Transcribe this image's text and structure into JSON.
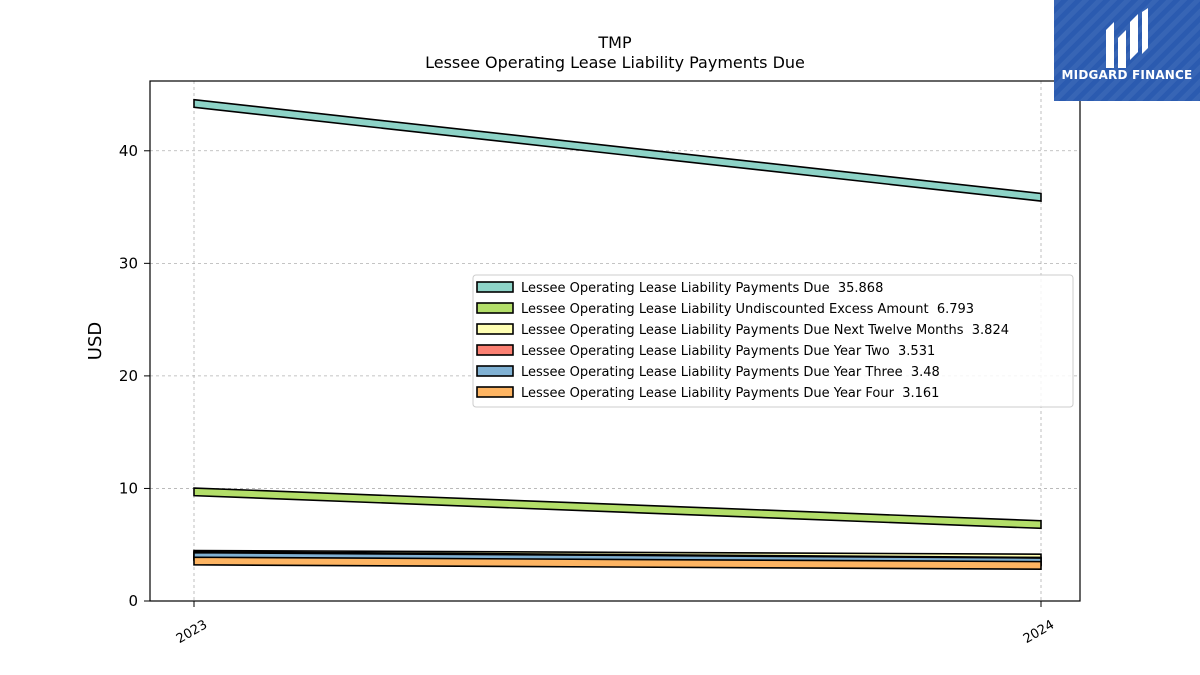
{
  "chart_data": {
    "type": "line",
    "title": "TMP",
    "subtitle": "Lessee Operating Lease Liability Payments Due",
    "xlabel": "",
    "ylabel": "USD",
    "categories": [
      "2023",
      "2024"
    ],
    "ylim": [
      0,
      46.2
    ],
    "yticks": [
      0,
      10,
      20,
      30,
      40
    ],
    "grid": true,
    "legend_position": "center-right",
    "series": [
      {
        "name": "Lessee Operating Lease Liability Payments Due",
        "legend_label": "Lessee Operating Lease Liability Payments Due  35.868",
        "values": [
          44.2,
          35.868
        ],
        "color": "#8dd3c7"
      },
      {
        "name": "Lessee Operating Lease Liability Undiscounted Excess Amount",
        "legend_label": "Lessee Operating Lease Liability Undiscounted Excess Amount  6.793",
        "values": [
          9.7,
          6.793
        ],
        "color": "#b3de69"
      },
      {
        "name": "Lessee Operating Lease Liability Payments Due Next Twelve Months",
        "legend_label": "Lessee Operating Lease Liability Payments Due Next Twelve Months  3.824",
        "values": [
          4.15,
          3.824
        ],
        "color": "#ffffb3"
      },
      {
        "name": "Lessee Operating Lease Liability Payments Due Year Two",
        "legend_label": "Lessee Operating Lease Liability Payments Due Year Two  3.531",
        "values": [
          4.05,
          3.531
        ],
        "color": "#fb8072"
      },
      {
        "name": "Lessee Operating Lease Liability Payments Due Year Three",
        "legend_label": "Lessee Operating Lease Liability Payments Due Year Three  3.48",
        "values": [
          3.95,
          3.48
        ],
        "color": "#80b1d3"
      },
      {
        "name": "Lessee Operating Lease Liability Payments Due Year Four",
        "legend_label": "Lessee Operating Lease Liability Payments Due Year Four  3.161",
        "values": [
          3.55,
          3.161
        ],
        "color": "#fdb462"
      }
    ]
  },
  "logo": {
    "text": "MIDGARD FINANCE",
    "color": "#2b5bb0"
  }
}
